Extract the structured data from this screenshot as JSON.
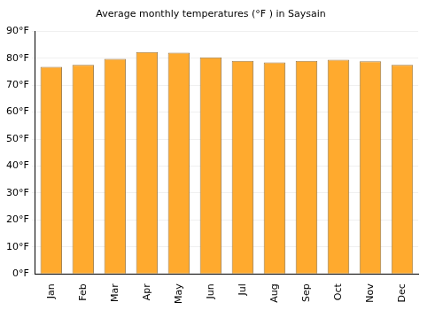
{
  "chart_data": {
    "type": "bar",
    "title": "Average monthly temperatures (°F ) in Saysain",
    "categories": [
      "Jan",
      "Feb",
      "Mar",
      "Apr",
      "May",
      "Jun",
      "Jul",
      "Aug",
      "Sep",
      "Oct",
      "Nov",
      "Dec"
    ],
    "values": [
      76.8,
      77.5,
      79.7,
      82.3,
      82.0,
      80.3,
      79.0,
      78.4,
      79.0,
      79.4,
      78.8,
      77.5
    ],
    "color": "#ffaa2e",
    "ylim": [
      0,
      90
    ],
    "yticks": [
      {
        "value": 0,
        "label": "0°F"
      },
      {
        "value": 10,
        "label": "10°F"
      },
      {
        "value": 20,
        "label": "20°F"
      },
      {
        "value": 30,
        "label": "30°F"
      },
      {
        "value": 40,
        "label": "40°F"
      },
      {
        "value": 50,
        "label": "50°F"
      },
      {
        "value": 60,
        "label": "60°F"
      },
      {
        "value": 70,
        "label": "70°F"
      },
      {
        "value": 80,
        "label": "80°F"
      },
      {
        "value": 90,
        "label": "90°F"
      }
    ],
    "grid": true
  }
}
